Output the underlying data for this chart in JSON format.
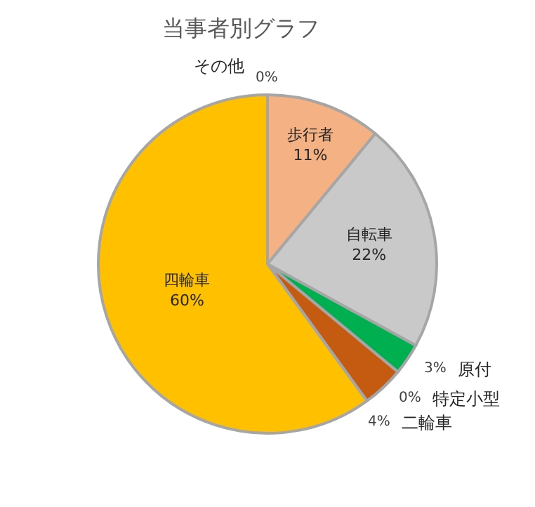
{
  "chart_data": {
    "type": "pie",
    "title": "当事者別グラフ",
    "categories": [
      "歩行者",
      "自転車",
      "原付",
      "特定小型",
      "二輪車",
      "四輪車",
      "その他"
    ],
    "values": [
      11,
      22,
      3,
      0,
      4,
      60,
      0
    ],
    "value_labels": [
      "11%",
      "22%",
      "3%",
      "0%",
      "4%",
      "60%",
      "0%"
    ],
    "colors": [
      "#f4b183",
      "#c9c9c9",
      "#00b050",
      "#a5a5a5",
      "#c55a11",
      "#ffc000",
      "#7f7f7f"
    ],
    "legend": false
  }
}
